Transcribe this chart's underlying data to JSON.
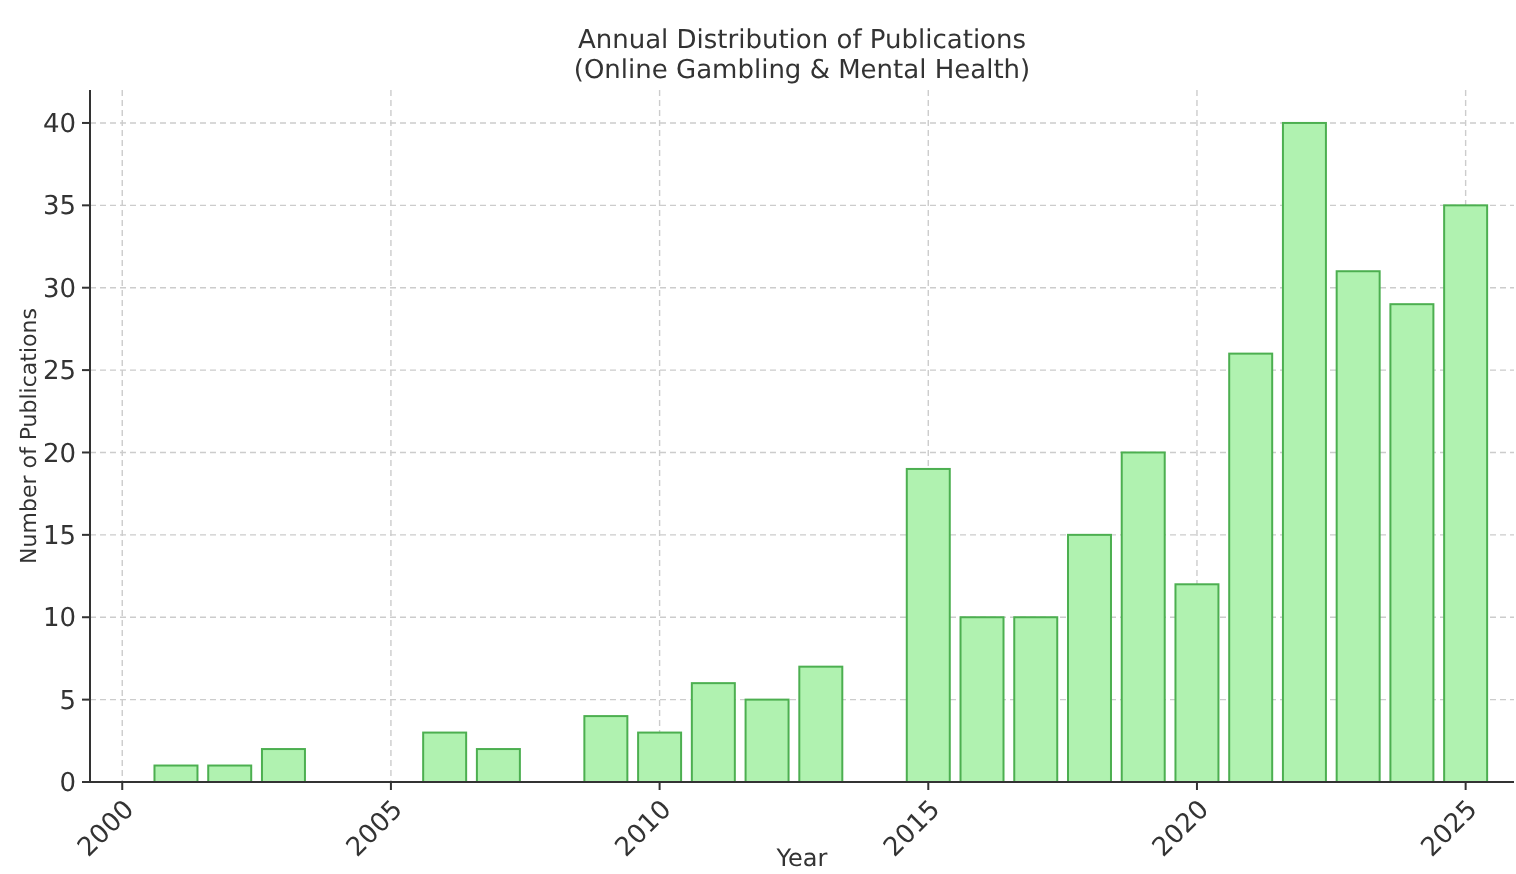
{
  "chart_data": {
    "type": "bar",
    "title": "Annual Distribution of Publications",
    "subtitle": "(Online Gambling & Mental Health)",
    "xlabel": "Year",
    "ylabel": "Number of Publications",
    "x": [
      2001,
      2002,
      2003,
      2006,
      2007,
      2009,
      2010,
      2011,
      2012,
      2013,
      2015,
      2016,
      2017,
      2018,
      2019,
      2020,
      2021,
      2022,
      2023,
      2024,
      2025
    ],
    "values": [
      1,
      1,
      2,
      3,
      2,
      4,
      3,
      6,
      5,
      7,
      19,
      10,
      10,
      15,
      20,
      12,
      26,
      40,
      31,
      29,
      35
    ],
    "color": "#b0f2b0",
    "xlim": [
      1999.4,
      2025.9
    ],
    "xticks": [
      2000,
      2005,
      2010,
      2015,
      2020,
      2025
    ],
    "ylim": [
      0,
      42
    ],
    "yticks": [
      0,
      5,
      10,
      15,
      20,
      25,
      30,
      35,
      40
    ],
    "grid": true
  }
}
